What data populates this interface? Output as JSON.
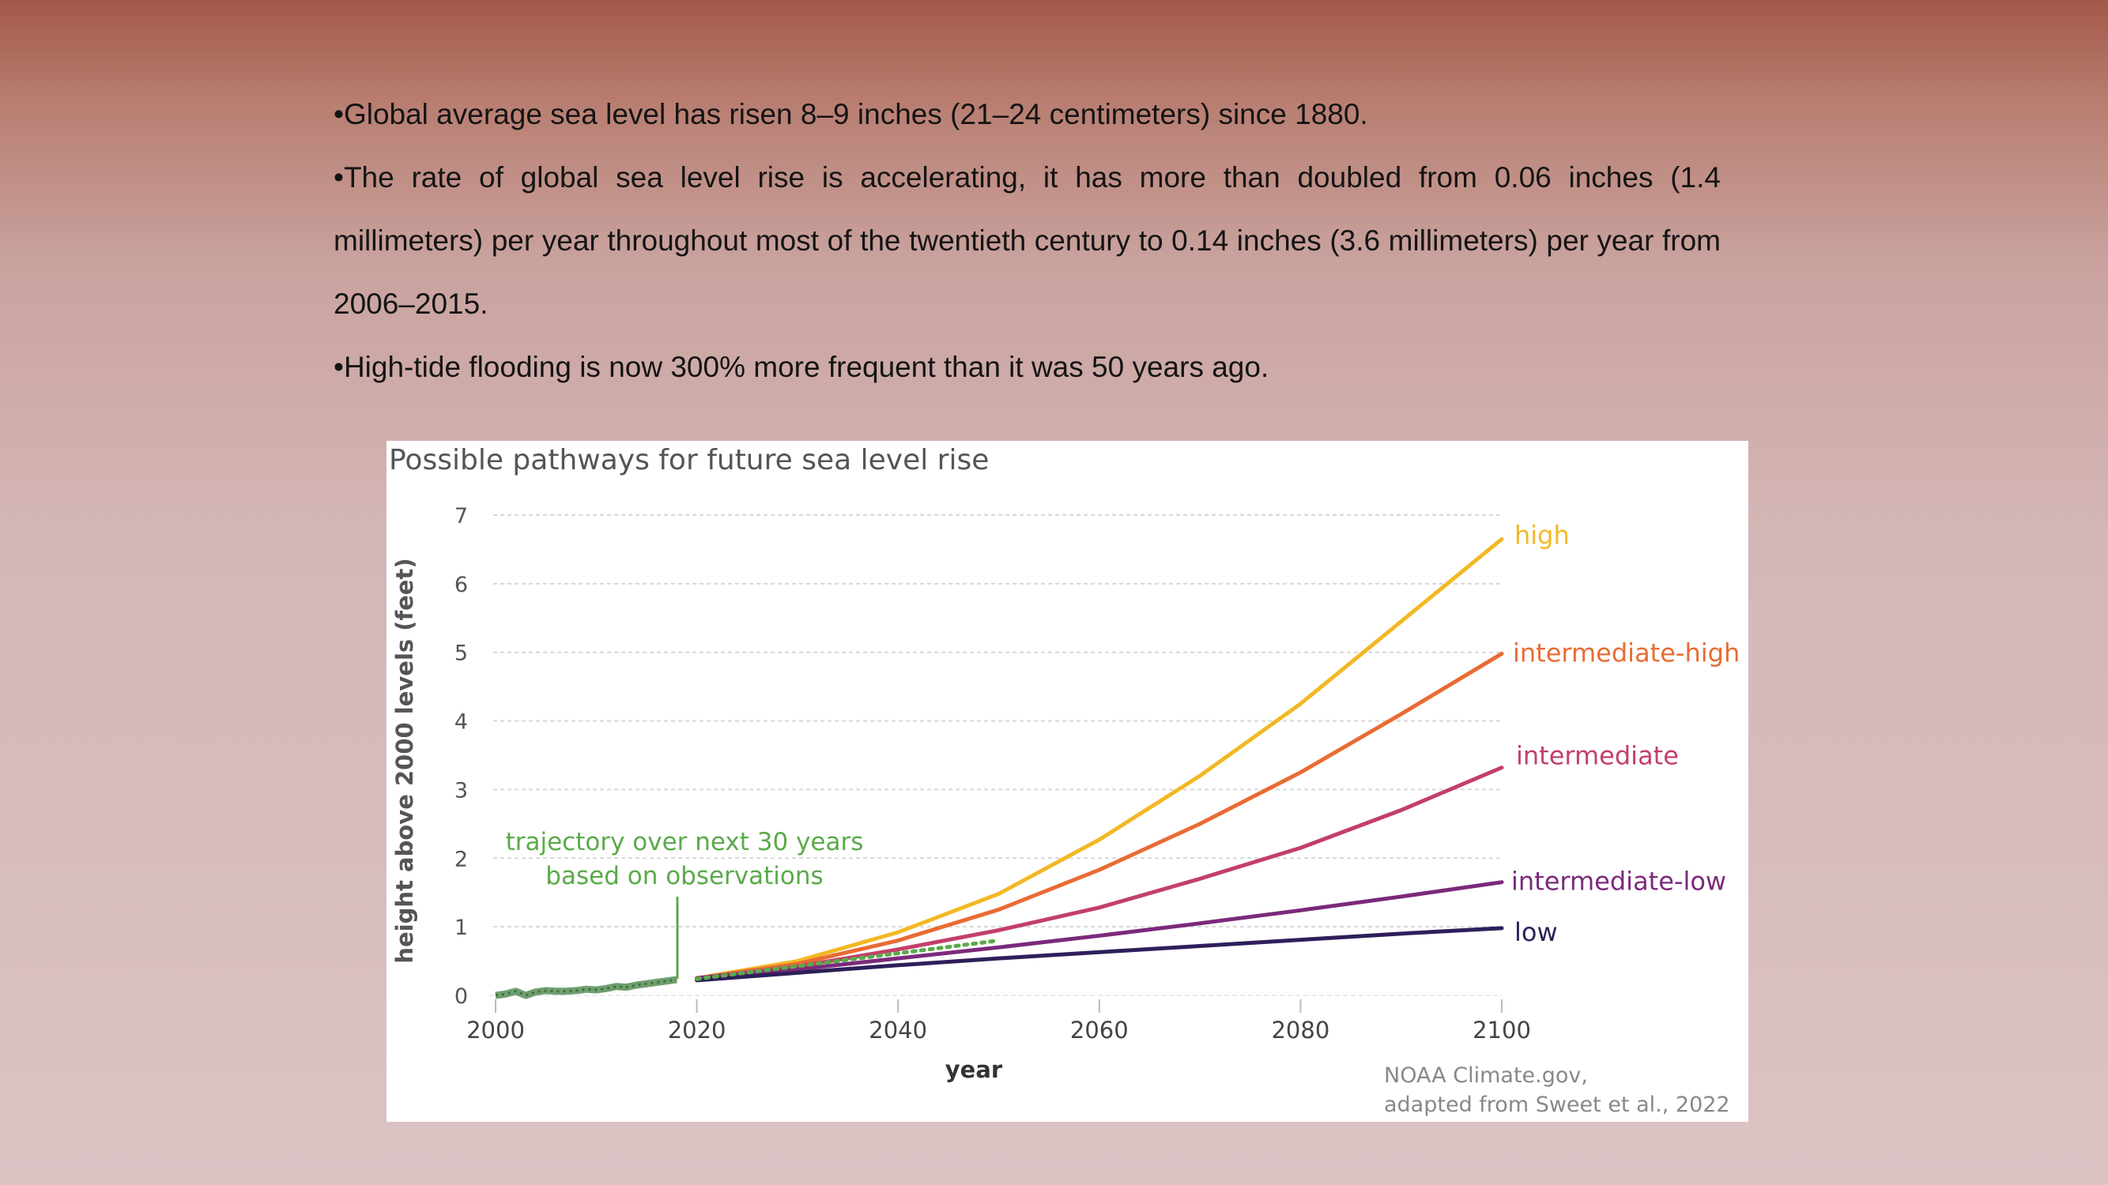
{
  "slide": {
    "bullets": [
      "•Global average sea level has risen 8–9 inches (21–24 centimeters) since 1880.",
      "•The rate of global sea level rise is accelerating, it has more than doubled from 0.06 inches (1.4 millimeters) per year throughout most of the twentieth century to 0.14 inches (3.6 millimeters) per year from 2006–2015.",
      "•High-tide flooding is now 300% more frequent than it was 50 years ago."
    ]
  },
  "colors": {
    "high": "#f2b824",
    "intermediate-high": "#ea6b33",
    "intermediate": "#c33f6b",
    "intermediate-low": "#7b2a7b",
    "low": "#2e1f59",
    "observed": "#6f9f6f",
    "trajectory": "#5aaa4a",
    "axis_text": "#555555",
    "grid": "#d8d8d8"
  },
  "chart_data": {
    "type": "line",
    "title": "Possible pathways for future sea level rise",
    "xlabel": "year",
    "ylabel": "height above 2000 levels (feet)",
    "xlim": [
      2000,
      2100
    ],
    "ylim": [
      0,
      7
    ],
    "x_ticks": [
      2000,
      2020,
      2040,
      2060,
      2080,
      2100
    ],
    "y_ticks": [
      0,
      1,
      2,
      3,
      4,
      5,
      6,
      7
    ],
    "grid": true,
    "annotation": [
      "trajectory over next 30 years",
      "based on observations"
    ],
    "credit": [
      "NOAA Climate.gov,",
      "adapted from Sweet et al., 2022"
    ],
    "observed": {
      "name": "observed",
      "x": [
        2000,
        2001,
        2002,
        2003,
        2004,
        2005,
        2006,
        2007,
        2008,
        2009,
        2010,
        2011,
        2012,
        2013,
        2014,
        2015,
        2016,
        2017,
        2018
      ],
      "values": [
        0.0,
        0.02,
        0.06,
        0.0,
        0.05,
        0.07,
        0.06,
        0.06,
        0.07,
        0.09,
        0.08,
        0.1,
        0.13,
        0.12,
        0.15,
        0.17,
        0.19,
        0.21,
        0.23
      ]
    },
    "trajectory": {
      "name": "trajectory over next 30 years based on observations",
      "x": [
        2020,
        2050
      ],
      "values": [
        0.24,
        0.8
      ]
    },
    "x": [
      2020,
      2030,
      2040,
      2050,
      2060,
      2070,
      2080,
      2090,
      2100
    ],
    "series": [
      {
        "name": "high",
        "values": [
          0.25,
          0.5,
          0.92,
          1.48,
          2.27,
          3.2,
          4.25,
          5.45,
          6.65
        ]
      },
      {
        "name": "intermediate-high",
        "values": [
          0.25,
          0.46,
          0.8,
          1.25,
          1.83,
          2.5,
          3.25,
          4.1,
          4.98
        ]
      },
      {
        "name": "intermediate",
        "values": [
          0.25,
          0.42,
          0.67,
          0.95,
          1.28,
          1.7,
          2.15,
          2.7,
          3.32
        ]
      },
      {
        "name": "intermediate-low",
        "values": [
          0.25,
          0.38,
          0.54,
          0.7,
          0.87,
          1.05,
          1.24,
          1.44,
          1.65
        ]
      },
      {
        "name": "low",
        "values": [
          0.22,
          0.33,
          0.44,
          0.54,
          0.63,
          0.72,
          0.81,
          0.9,
          0.98
        ]
      }
    ]
  }
}
